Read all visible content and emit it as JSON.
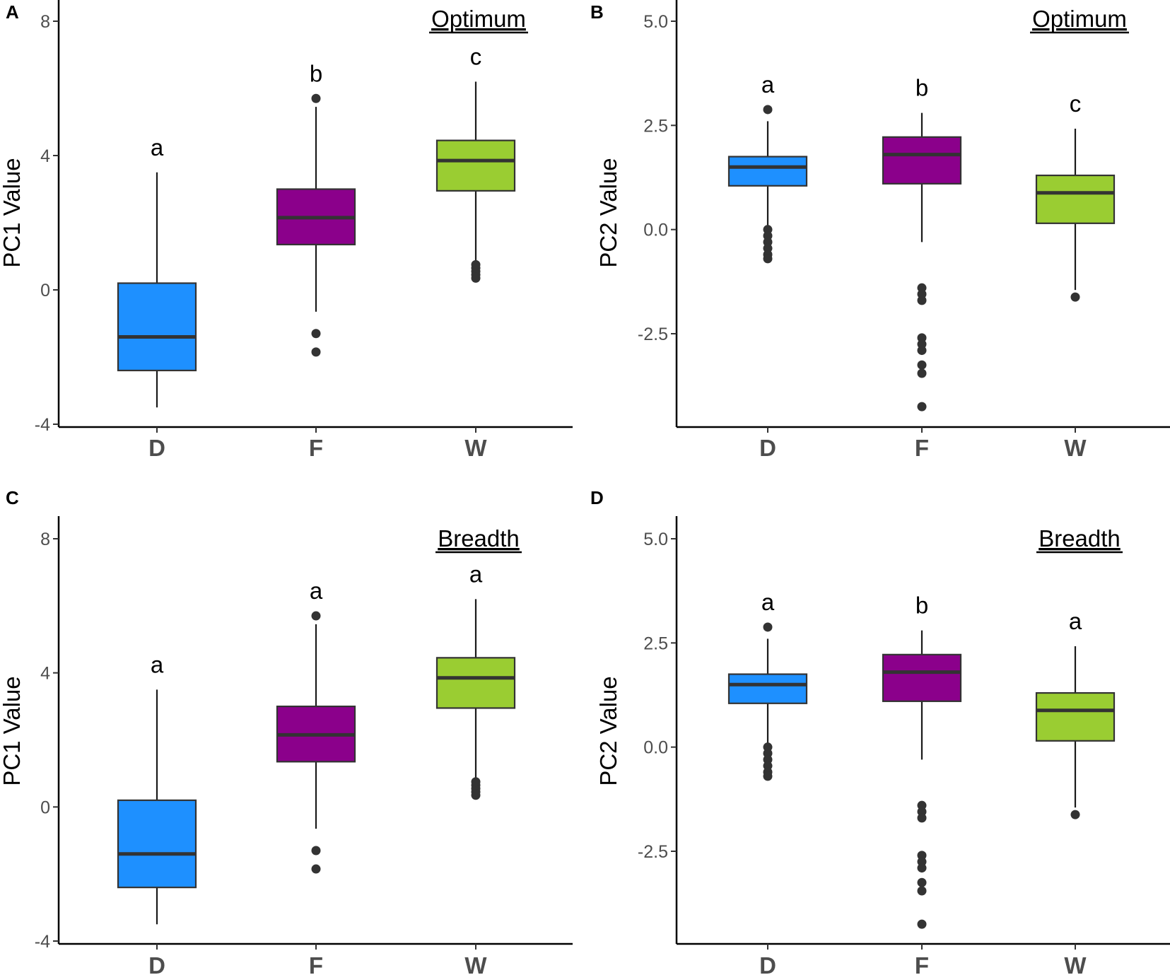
{
  "chart_data": [
    {
      "panel": "A",
      "type": "boxplot",
      "annotation": "Optimum",
      "ylabel": "PC1 Value",
      "xlabel": "",
      "ylim": [
        -4,
        8.5
      ],
      "yticks": [
        -4,
        0,
        4,
        8
      ],
      "ytick_labels": [
        "-4",
        "0",
        "4",
        "8"
      ],
      "categories": [
        "D",
        "F",
        "W"
      ],
      "colors": [
        "#1e90ff",
        "#8b008b",
        "#9acd32"
      ],
      "boxes": [
        {
          "category": "D",
          "q1": -2.4,
          "median": -1.4,
          "q3": 0.2,
          "whisker_low": -3.5,
          "whisker_high": 3.5,
          "outliers": [],
          "letter": "a"
        },
        {
          "category": "F",
          "q1": 1.35,
          "median": 2.15,
          "q3": 3.0,
          "whisker_low": -0.65,
          "whisker_high": 5.45,
          "outliers": [
            5.7,
            -1.3,
            -1.85
          ],
          "letter": "b"
        },
        {
          "category": "W",
          "q1": 2.95,
          "median": 3.85,
          "q3": 4.45,
          "whisker_low": 0.8,
          "whisker_high": 6.2,
          "outliers": [
            0.35,
            0.45,
            0.55,
            0.65,
            0.75
          ],
          "letter": "c"
        }
      ]
    },
    {
      "panel": "B",
      "type": "boxplot",
      "annotation": "Optimum",
      "ylabel": "PC2 Value",
      "xlabel": "",
      "ylim": [
        -4.7,
        5.3
      ],
      "yticks": [
        -2.5,
        0.0,
        2.5,
        5.0
      ],
      "ytick_labels": [
        "-2.5",
        "0.0",
        "2.5",
        "5.0"
      ],
      "categories": [
        "D",
        "F",
        "W"
      ],
      "colors": [
        "#1e90ff",
        "#8b008b",
        "#9acd32"
      ],
      "boxes": [
        {
          "category": "D",
          "q1": 1.05,
          "median": 1.5,
          "q3": 1.75,
          "whisker_low": 0.1,
          "whisker_high": 2.6,
          "outliers": [
            2.88,
            0.0,
            -0.15,
            -0.3,
            -0.45,
            -0.6,
            -0.7
          ],
          "letter": "a"
        },
        {
          "category": "F",
          "q1": 1.1,
          "median": 1.8,
          "q3": 2.22,
          "whisker_low": -0.3,
          "whisker_high": 2.8,
          "outliers": [
            -1.4,
            -1.55,
            -1.7,
            -2.6,
            -2.75,
            -2.9,
            -3.25,
            -3.45,
            -4.25
          ],
          "letter": "b"
        },
        {
          "category": "W",
          "q1": 0.15,
          "median": 0.88,
          "q3": 1.3,
          "whisker_low": -1.45,
          "whisker_high": 2.42,
          "outliers": [
            -1.62
          ],
          "letter": "c"
        }
      ]
    },
    {
      "panel": "C",
      "type": "boxplot",
      "annotation": "Breadth",
      "ylabel": "PC1 Value",
      "xlabel": "",
      "ylim": [
        -4,
        8.5
      ],
      "yticks": [
        -4,
        0,
        4,
        8
      ],
      "ytick_labels": [
        "-4",
        "0",
        "4",
        "8"
      ],
      "categories": [
        "D",
        "F",
        "W"
      ],
      "colors": [
        "#1e90ff",
        "#8b008b",
        "#9acd32"
      ],
      "boxes": [
        {
          "category": "D",
          "q1": -2.4,
          "median": -1.4,
          "q3": 0.2,
          "whisker_low": -3.5,
          "whisker_high": 3.5,
          "outliers": [],
          "letter": "a"
        },
        {
          "category": "F",
          "q1": 1.35,
          "median": 2.15,
          "q3": 3.0,
          "whisker_low": -0.65,
          "whisker_high": 5.45,
          "outliers": [
            5.7,
            -1.3,
            -1.85
          ],
          "letter": "a"
        },
        {
          "category": "W",
          "q1": 2.95,
          "median": 3.85,
          "q3": 4.45,
          "whisker_low": 0.8,
          "whisker_high": 6.2,
          "outliers": [
            0.35,
            0.45,
            0.55,
            0.65,
            0.75
          ],
          "letter": "a"
        }
      ]
    },
    {
      "panel": "D",
      "type": "boxplot",
      "annotation": "Breadth",
      "ylabel": "PC2 Value",
      "xlabel": "",
      "ylim": [
        -4.7,
        5.3
      ],
      "yticks": [
        -2.5,
        0.0,
        2.5,
        5.0
      ],
      "ytick_labels": [
        "-2.5",
        "0.0",
        "2.5",
        "5.0"
      ],
      "categories": [
        "D",
        "F",
        "W"
      ],
      "colors": [
        "#1e90ff",
        "#8b008b",
        "#9acd32"
      ],
      "boxes": [
        {
          "category": "D",
          "q1": 1.05,
          "median": 1.5,
          "q3": 1.75,
          "whisker_low": 0.1,
          "whisker_high": 2.6,
          "outliers": [
            2.88,
            0.0,
            -0.15,
            -0.3,
            -0.45,
            -0.6,
            -0.7
          ],
          "letter": "a"
        },
        {
          "category": "F",
          "q1": 1.1,
          "median": 1.8,
          "q3": 2.22,
          "whisker_low": -0.3,
          "whisker_high": 2.8,
          "outliers": [
            -1.4,
            -1.55,
            -1.7,
            -2.6,
            -2.75,
            -2.9,
            -3.25,
            -3.45,
            -4.25
          ],
          "letter": "b"
        },
        {
          "category": "W",
          "q1": 0.15,
          "median": 0.88,
          "q3": 1.3,
          "whisker_low": -1.45,
          "whisker_high": 2.42,
          "outliers": [
            -1.62
          ],
          "letter": "a"
        }
      ]
    }
  ]
}
